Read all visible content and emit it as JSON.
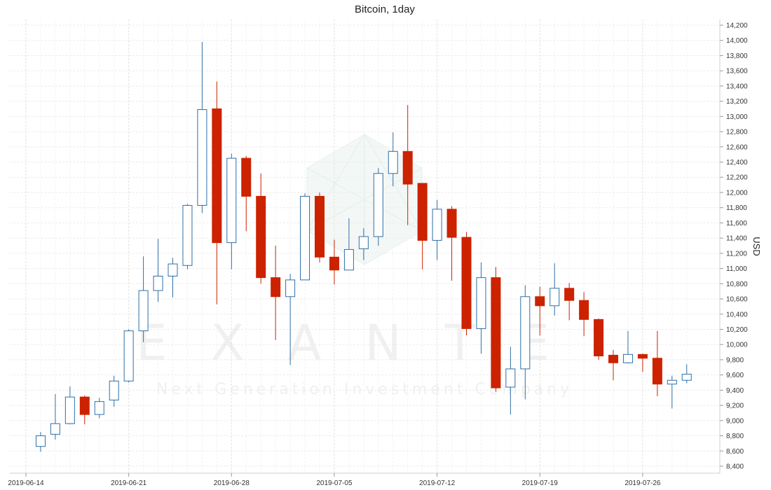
{
  "chart_data": {
    "type": "candlestick",
    "title": "Bitcoin, 1day",
    "ylabel": "USD",
    "xlabel": "",
    "ylim": [
      8300,
      14250
    ],
    "y_ticks": [
      8400,
      8600,
      8800,
      9000,
      9200,
      9400,
      9600,
      9800,
      10000,
      10200,
      10400,
      10600,
      10800,
      11000,
      11200,
      11400,
      11600,
      11800,
      12000,
      12200,
      12400,
      12600,
      12800,
      13000,
      13200,
      13400,
      13600,
      13800,
      14000,
      14200
    ],
    "y_tick_labels": [
      "8,400",
      "8,600",
      "8,800",
      "9,000",
      "9,200",
      "9,400",
      "9,600",
      "9,800",
      "10,000",
      "10,200",
      "10,400",
      "10,600",
      "10,800",
      "11,000",
      "11,200",
      "11,400",
      "11,600",
      "11,800",
      "12,000",
      "12,200",
      "12,400",
      "12,600",
      "12,800",
      "13,000",
      "13,200",
      "13,400",
      "13,600",
      "13,800",
      "14,000",
      "14,200"
    ],
    "x_ticks": [
      "2019-06-14",
      "2019-06-21",
      "2019-06-28",
      "2019-07-05",
      "2019-07-12",
      "2019-07-19",
      "2019-07-26"
    ],
    "grid": true,
    "up_color": "#2f6fa8",
    "down_color": "#cc2200",
    "candles": [
      {
        "date": "2019-06-15",
        "open": 8660,
        "high": 8850,
        "low": 8590,
        "close": 8800
      },
      {
        "date": "2019-06-16",
        "open": 8820,
        "high": 9350,
        "low": 8750,
        "close": 8960
      },
      {
        "date": "2019-06-17",
        "open": 8960,
        "high": 9450,
        "low": 8950,
        "close": 9310
      },
      {
        "date": "2019-06-18",
        "open": 9310,
        "high": 9330,
        "low": 8950,
        "close": 9080
      },
      {
        "date": "2019-06-19",
        "open": 9080,
        "high": 9300,
        "low": 9030,
        "close": 9250
      },
      {
        "date": "2019-06-20",
        "open": 9270,
        "high": 9590,
        "low": 9180,
        "close": 9520
      },
      {
        "date": "2019-06-21",
        "open": 9520,
        "high": 10200,
        "low": 9500,
        "close": 10180
      },
      {
        "date": "2019-06-22",
        "open": 10180,
        "high": 11160,
        "low": 10030,
        "close": 10710
      },
      {
        "date": "2019-06-23",
        "open": 10710,
        "high": 11390,
        "low": 10560,
        "close": 10900
      },
      {
        "date": "2019-06-24",
        "open": 10900,
        "high": 11140,
        "low": 10620,
        "close": 11060
      },
      {
        "date": "2019-06-25",
        "open": 11040,
        "high": 11850,
        "low": 10990,
        "close": 11830
      },
      {
        "date": "2019-06-26",
        "open": 11830,
        "high": 13980,
        "low": 11730,
        "close": 13090
      },
      {
        "date": "2019-06-27",
        "open": 13100,
        "high": 13460,
        "low": 10530,
        "close": 11340
      },
      {
        "date": "2019-06-28",
        "open": 11340,
        "high": 12510,
        "low": 10990,
        "close": 12450
      },
      {
        "date": "2019-06-29",
        "open": 12450,
        "high": 12480,
        "low": 11490,
        "close": 11950
      },
      {
        "date": "2019-06-30",
        "open": 11950,
        "high": 12250,
        "low": 10800,
        "close": 10880
      },
      {
        "date": "2019-07-01",
        "open": 10880,
        "high": 11300,
        "low": 10060,
        "close": 10630
      },
      {
        "date": "2019-07-02",
        "open": 10630,
        "high": 10930,
        "low": 9730,
        "close": 10850
      },
      {
        "date": "2019-07-03",
        "open": 10850,
        "high": 11990,
        "low": 10850,
        "close": 11950
      },
      {
        "date": "2019-07-04",
        "open": 11950,
        "high": 12000,
        "low": 11080,
        "close": 11150
      },
      {
        "date": "2019-07-05",
        "open": 11150,
        "high": 11380,
        "low": 10790,
        "close": 10980
      },
      {
        "date": "2019-07-06",
        "open": 10980,
        "high": 11660,
        "low": 10980,
        "close": 11250
      },
      {
        "date": "2019-07-07",
        "open": 11260,
        "high": 11530,
        "low": 11110,
        "close": 11420
      },
      {
        "date": "2019-07-08",
        "open": 11420,
        "high": 12320,
        "low": 11300,
        "close": 12250
      },
      {
        "date": "2019-07-09",
        "open": 12250,
        "high": 12790,
        "low": 12080,
        "close": 12540
      },
      {
        "date": "2019-07-10",
        "open": 12540,
        "high": 13150,
        "low": 11570,
        "close": 12110
      },
      {
        "date": "2019-07-11",
        "open": 12120,
        "high": 12120,
        "low": 10990,
        "close": 11370
      },
      {
        "date": "2019-07-12",
        "open": 11370,
        "high": 11900,
        "low": 11110,
        "close": 11780
      },
      {
        "date": "2019-07-13",
        "open": 11780,
        "high": 11820,
        "low": 10840,
        "close": 11410
      },
      {
        "date": "2019-07-14",
        "open": 11410,
        "high": 11480,
        "low": 10120,
        "close": 10210
      },
      {
        "date": "2019-07-15",
        "open": 10210,
        "high": 11080,
        "low": 9880,
        "close": 10880
      },
      {
        "date": "2019-07-16",
        "open": 10880,
        "high": 11020,
        "low": 9380,
        "close": 9430
      },
      {
        "date": "2019-07-17",
        "open": 9440,
        "high": 9970,
        "low": 9080,
        "close": 9680
      },
      {
        "date": "2019-07-18",
        "open": 9680,
        "high": 10780,
        "low": 9280,
        "close": 10630
      },
      {
        "date": "2019-07-19",
        "open": 10630,
        "high": 10760,
        "low": 10120,
        "close": 10510
      },
      {
        "date": "2019-07-20",
        "open": 10510,
        "high": 11070,
        "low": 10380,
        "close": 10740
      },
      {
        "date": "2019-07-21",
        "open": 10740,
        "high": 10810,
        "low": 10320,
        "close": 10580
      },
      {
        "date": "2019-07-22",
        "open": 10580,
        "high": 10690,
        "low": 10110,
        "close": 10330
      },
      {
        "date": "2019-07-23",
        "open": 10330,
        "high": 10340,
        "low": 9800,
        "close": 9850
      },
      {
        "date": "2019-07-24",
        "open": 9860,
        "high": 9930,
        "low": 9530,
        "close": 9760
      },
      {
        "date": "2019-07-25",
        "open": 9760,
        "high": 10180,
        "low": 9750,
        "close": 9870
      },
      {
        "date": "2019-07-26",
        "open": 9870,
        "high": 9880,
        "low": 9640,
        "close": 9820
      },
      {
        "date": "2019-07-27",
        "open": 9820,
        "high": 10180,
        "low": 9320,
        "close": 9480
      },
      {
        "date": "2019-07-28",
        "open": 9480,
        "high": 9590,
        "low": 9160,
        "close": 9530
      },
      {
        "date": "2019-07-29",
        "open": 9530,
        "high": 9740,
        "low": 9490,
        "close": 9610
      }
    ]
  },
  "watermark": {
    "brand": "EXANTE",
    "tagline": "Next Generation Investment Company"
  }
}
